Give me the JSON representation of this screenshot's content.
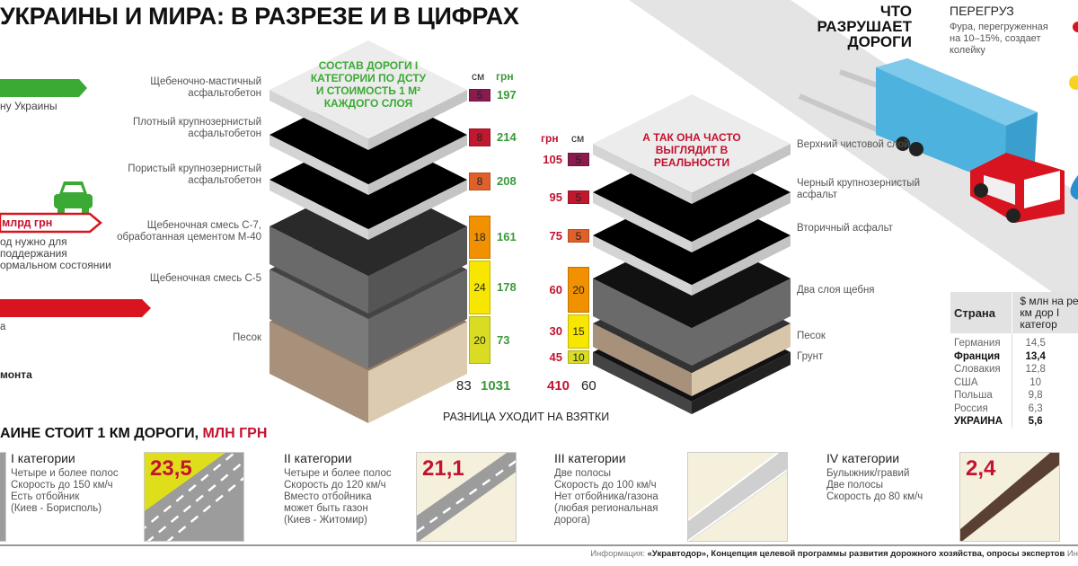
{
  "header": {
    "title": "УКРАИНЫ И МИРА: В РАЗРЕЗЕ И В ЦИФРАХ"
  },
  "left_panel": {
    "green_caption": "ну Украины",
    "red_outline_label": "млрд грн",
    "red_outline_caption": [
      "од нужно для",
      "поддержания",
      "ормальном состоянии"
    ],
    "red_bar_caption": "а",
    "bold_caption": "монта",
    "icons": [
      "car-icon"
    ],
    "colors": {
      "green": "#3aaa35",
      "red": "#d7141f"
    }
  },
  "standard_stack": {
    "heading": "СОСТАВ ДОРОГИ I КАТЕГОРИИ ПО ДСТУ И СТОИМОСТЬ 1 М² КАЖДОГО СЛОЯ",
    "col_cm": "см",
    "col_grn": "грн",
    "layers": [
      {
        "label": "Щебеночно-мастичный асфальтобетон",
        "cm": "5",
        "grn": "197",
        "color": "#8b1a4f"
      },
      {
        "label": "Плотный крупнозернистый асфальтобетон",
        "cm": "8",
        "grn": "214",
        "color": "#c0182e"
      },
      {
        "label": "Пористый крупнозернистый асфальтобетон",
        "cm": "8",
        "grn": "208",
        "color": "#e0602a"
      },
      {
        "label": "Щебеночная смесь С-7, обработанная цементом М-40",
        "cm": "18",
        "grn": "161",
        "color": "#f29100"
      },
      {
        "label": "Щебеночная смесь С-5",
        "cm": "24",
        "grn": "178",
        "color": "#f7e600"
      },
      {
        "label": "Песок",
        "cm": "20",
        "grn": "73",
        "color": "#d9dc22"
      }
    ],
    "total_cm": "83",
    "total_grn": "1031"
  },
  "real_stack": {
    "heading": "А ТАК ОНА ЧАСТО ВЫГЛЯДИТ В РЕАЛЬНОСТИ",
    "col_grn": "грн",
    "col_cm": "см",
    "layers": [
      {
        "label": "Верхний чистовой слой",
        "cm": "5",
        "grn": "105",
        "color": "#8b1a4f"
      },
      {
        "label": "Черный крупнозернистый асфальт",
        "cm": "5",
        "grn": "95",
        "color": "#c0182e"
      },
      {
        "label": "Вторичный асфальт",
        "cm": "5",
        "grn": "75",
        "color": "#e0602a"
      },
      {
        "label": "Два слоя щебня",
        "cm": "20",
        "grn": "60",
        "color": "#f29100"
      },
      {
        "label": "Песок",
        "cm": "15",
        "grn": "30",
        "color": "#f7e600"
      },
      {
        "label": "Грунт",
        "cm": "10",
        "grn": "45",
        "color": "#d9dc22"
      }
    ],
    "total_grn": "410",
    "total_cm": "60"
  },
  "difference_caption": "РАЗНИЦА УХОДИТ НА ВЗЯТКИ",
  "destroys": {
    "heading": "ЧТО РАЗРУШАЕТ ДОРОГИ",
    "overload_title": "ПЕРЕГРУЗ",
    "overload_text": "Фура, перегруженная на 10–15%, создает колейку",
    "icons": [
      "truck-icon",
      "sun-icon",
      "water-drop-icon"
    ]
  },
  "country_table": {
    "col_country": "Страна",
    "col_value": "$ млн на ре 1 км дор I категор",
    "rows": [
      {
        "country": "Германия",
        "value": "14,5",
        "bold": false
      },
      {
        "country": "Франция",
        "value": "13,4",
        "bold": true
      },
      {
        "country": "Словакия",
        "value": "12,8",
        "bold": false
      },
      {
        "country": "США",
        "value": "10",
        "bold": false
      },
      {
        "country": "Польша",
        "value": "9,8",
        "bold": false
      },
      {
        "country": "Россия",
        "value": "6,3",
        "bold": false
      },
      {
        "country": "УКРАИНА",
        "value": "5,6",
        "bold": true
      }
    ]
  },
  "cost_section": {
    "heading_black": "АИНЕ СТОИТ 1 КМ ДОРОГИ, ",
    "heading_red": "МЛН ГРН",
    "categories": [
      {
        "title": "I категории",
        "lines": [
          "Четыре и более полос",
          "Скорость до 150 км/ч",
          "Есть отбойник",
          "(Киев - Борисполь)"
        ]
      },
      {
        "title": "II категории",
        "lines": [
          "Четыре и более полос",
          "Скорость до 120 км/ч",
          "Вместо отбойника",
          "может быть газон",
          "(Киев - Житомир)"
        ]
      },
      {
        "title": "III категории",
        "lines": [
          "Две полосы",
          "Скорость до 100 км/ч",
          "Нет отбойника/газона",
          "(любая региональная",
          "дорога)"
        ]
      },
      {
        "title": "IV категории",
        "lines": [
          "Булыжник/гравий",
          "Две полосы",
          "Скорость до 80 км/ч"
        ]
      }
    ],
    "costs": [
      "23,5",
      "21,1",
      "",
      "2,4"
    ]
  },
  "source": {
    "prefix": "Информация: ",
    "text": "«Укравтодор», Концепция целевой программы развития дорожного хозяйства, опросы экспертов",
    "suffix": " Ин"
  }
}
